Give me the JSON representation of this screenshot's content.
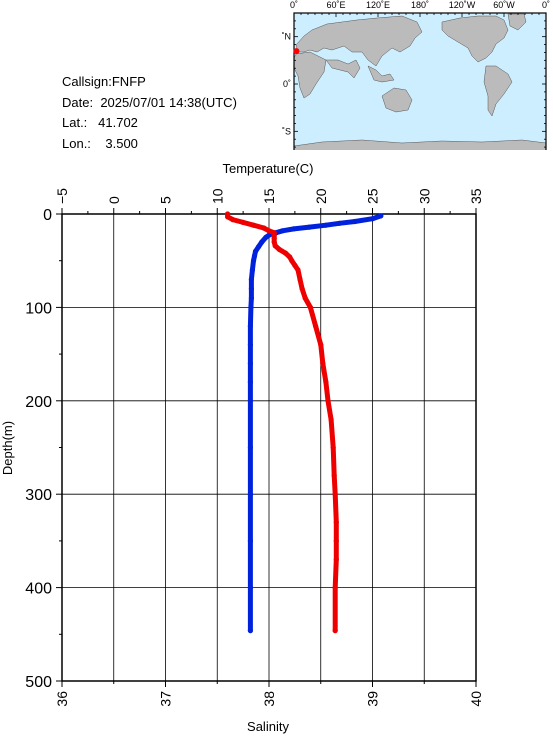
{
  "info": {
    "callsign_label": "Callsign:",
    "callsign": "FNFP",
    "date_label": "Date:",
    "date": "2025/07/01 14:38(UTC)",
    "lat_label": "Lat.:",
    "lat": "41.702",
    "lon_label": "Lon.:",
    "lon": "3.500"
  },
  "map": {
    "top_ticks": [
      "0˚",
      "60˚E",
      "120˚E",
      "180˚",
      "120˚W",
      "60˚W",
      "0˚"
    ],
    "side_ticks": [
      "60˚N",
      "0˚",
      "60˚S"
    ],
    "ocean_color": "#cceeff",
    "land_color": "#bbbbbb",
    "marker_color": "#ff0000",
    "marker": {
      "lat": 41.702,
      "lon": 3.5
    }
  },
  "chart_data": {
    "type": "line",
    "xlabel_top": "Temperature(C)",
    "xlabel_bottom": "Salinity",
    "ylabel": "Depth(m)",
    "temp_ticks": [
      "−5",
      "0",
      "5",
      "10",
      "15",
      "20",
      "25",
      "30",
      "35"
    ],
    "sal_ticks": [
      "36",
      "37",
      "38",
      "39",
      "40"
    ],
    "depth_ticks": [
      "0",
      "100",
      "200",
      "300",
      "400",
      "500"
    ],
    "temp_range": [
      -5,
      35
    ],
    "sal_range": [
      36,
      40
    ],
    "depth_range": [
      0,
      500
    ],
    "grid": true,
    "series": [
      {
        "axis": "temperature",
        "color": "#0022dd",
        "depth": [
          2,
          5,
          8,
          10,
          12,
          14,
          16,
          18,
          20,
          22,
          25,
          30,
          35,
          40,
          45,
          50,
          60,
          70,
          80,
          90,
          100,
          120,
          140,
          160,
          180,
          200,
          250,
          300,
          350,
          400,
          446
        ],
        "values": [
          25.8,
          25.0,
          23.3,
          21.8,
          20.5,
          18.9,
          17.4,
          16.3,
          15.7,
          15.1,
          14.7,
          14.3,
          14.0,
          13.7,
          13.6,
          13.5,
          13.4,
          13.3,
          13.3,
          13.3,
          13.25,
          13.2,
          13.2,
          13.2,
          13.2,
          13.2,
          13.2,
          13.2,
          13.2,
          13.2,
          13.2
        ]
      },
      {
        "axis": "salinity",
        "color": "#ee0000",
        "depth": [
          0,
          3,
          6,
          9,
          12,
          15,
          18,
          20,
          23,
          26,
          30,
          34,
          38,
          42,
          46,
          50,
          55,
          60,
          70,
          80,
          90,
          100,
          120,
          140,
          160,
          180,
          200,
          220,
          250,
          280,
          300,
          330,
          350,
          370,
          400,
          446
        ],
        "values": [
          37.6,
          37.6,
          37.65,
          37.75,
          37.85,
          37.95,
          38.0,
          38.05,
          38.05,
          38.05,
          38.05,
          38.06,
          38.1,
          38.16,
          38.2,
          38.22,
          38.25,
          38.28,
          38.3,
          38.32,
          38.35,
          38.4,
          38.45,
          38.5,
          38.52,
          38.55,
          38.57,
          38.6,
          38.62,
          38.63,
          38.64,
          38.65,
          38.65,
          38.65,
          38.64,
          38.64
        ]
      }
    ]
  }
}
